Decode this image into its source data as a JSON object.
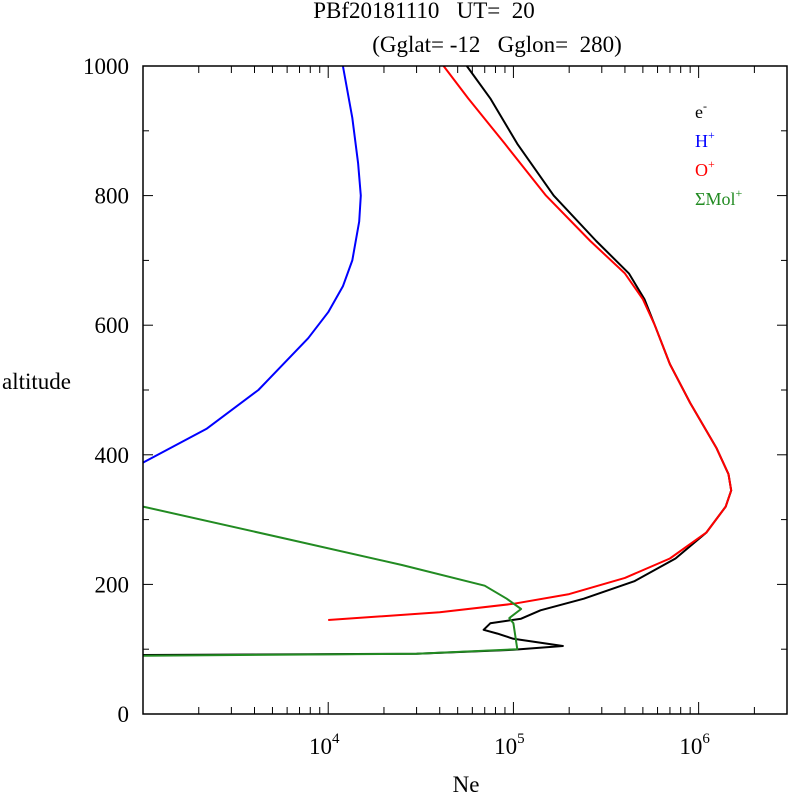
{
  "chart_data": {
    "type": "line",
    "title_line1": "PBf20181110   UT=  20",
    "title_line2": "(Gglat= -12   Gglon=  280)",
    "xlabel": "Ne",
    "ylabel": "altitude",
    "x_scale": "log",
    "xlim": [
      1000,
      3000000
    ],
    "ylim": [
      0,
      1000
    ],
    "y_ticks": [
      0,
      200,
      400,
      600,
      800,
      1000
    ],
    "x_ticks": [
      {
        "base": "10",
        "exp": "4",
        "value": 10000
      },
      {
        "base": "10",
        "exp": "5",
        "value": 100000
      },
      {
        "base": "10",
        "exp": "6",
        "value": 1000000
      }
    ],
    "legend_position": "top-right",
    "series": [
      {
        "name": "e",
        "sup": "-",
        "color": "#000000",
        "points": [
          [
            1000,
            91
          ],
          [
            30000,
            93
          ],
          [
            100000,
            99
          ],
          [
            185000,
            105
          ],
          [
            100000,
            116
          ],
          [
            82000,
            124
          ],
          [
            69000,
            130
          ],
          [
            75000,
            140
          ],
          [
            110000,
            147
          ],
          [
            140000,
            160
          ],
          [
            240000,
            178
          ],
          [
            450000,
            205
          ],
          [
            750000,
            240
          ],
          [
            1100000,
            280
          ],
          [
            1400000,
            320
          ],
          [
            1500000,
            345
          ],
          [
            1450000,
            370
          ],
          [
            1250000,
            410
          ],
          [
            900000,
            480
          ],
          [
            700000,
            540
          ],
          [
            580000,
            600
          ],
          [
            510000,
            640
          ],
          [
            420000,
            680
          ],
          [
            280000,
            730
          ],
          [
            165000,
            800
          ],
          [
            105000,
            880
          ],
          [
            75000,
            950
          ],
          [
            56000,
            1000
          ]
        ]
      },
      {
        "name": "H",
        "sup": "+",
        "color": "#0000ff",
        "points": [
          [
            1000,
            388
          ],
          [
            2200,
            440
          ],
          [
            4200,
            500
          ],
          [
            7800,
            580
          ],
          [
            10000,
            620
          ],
          [
            12000,
            660
          ],
          [
            13500,
            700
          ],
          [
            14700,
            760
          ],
          [
            15000,
            800
          ],
          [
            14500,
            850
          ],
          [
            13500,
            920
          ],
          [
            12000,
            1000
          ]
        ]
      },
      {
        "name": "O",
        "sup": "+",
        "color": "#ff0000",
        "points": [
          [
            10000,
            145
          ],
          [
            40000,
            157
          ],
          [
            100000,
            170
          ],
          [
            200000,
            185
          ],
          [
            400000,
            210
          ],
          [
            700000,
            240
          ],
          [
            1100000,
            280
          ],
          [
            1400000,
            320
          ],
          [
            1500000,
            345
          ],
          [
            1450000,
            370
          ],
          [
            1250000,
            410
          ],
          [
            900000,
            480
          ],
          [
            700000,
            540
          ],
          [
            580000,
            600
          ],
          [
            500000,
            640
          ],
          [
            400000,
            680
          ],
          [
            260000,
            730
          ],
          [
            150000,
            800
          ],
          [
            90000,
            880
          ],
          [
            57000,
            950
          ],
          [
            42000,
            1000
          ]
        ]
      },
      {
        "name": "ΣMol",
        "sup": "+",
        "color": "#228b22",
        "points": [
          [
            1000,
            90
          ],
          [
            30000,
            93
          ],
          [
            105000,
            100
          ],
          [
            100000,
            140
          ],
          [
            95000,
            148
          ],
          [
            110000,
            162
          ],
          [
            92000,
            178
          ],
          [
            70000,
            198
          ],
          [
            25000,
            230
          ],
          [
            6000,
            270
          ],
          [
            1000,
            320
          ]
        ]
      }
    ]
  }
}
